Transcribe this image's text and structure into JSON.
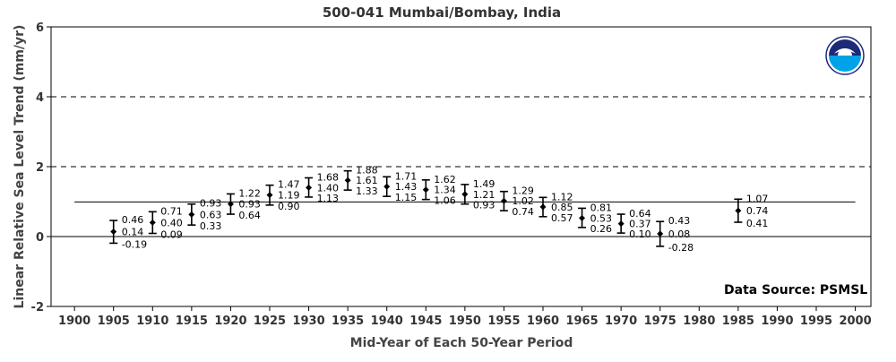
{
  "chart_data": {
    "type": "scatter",
    "title": "500-041 Mumbai/Bombay, India",
    "xlabel": "Mid-Year of Each 50-Year Period",
    "ylabel": "Linear Relative Sea Level Trend (mm/yr)",
    "xlim": [
      1897,
      2002
    ],
    "ylim": [
      -2,
      6
    ],
    "x_ticks": [
      1900,
      1905,
      1910,
      1915,
      1920,
      1925,
      1930,
      1935,
      1940,
      1945,
      1950,
      1955,
      1960,
      1965,
      1970,
      1975,
      1980,
      1985,
      1990,
      1995,
      2000
    ],
    "y_ticks": [
      -2,
      0,
      2,
      4,
      6
    ],
    "reference_lines": [
      {
        "y": 4,
        "style": "dashed"
      },
      {
        "y": 2,
        "style": "dashed"
      },
      {
        "y": 0,
        "style": "solid"
      }
    ],
    "trend_line": {
      "y": 0.99,
      "x_start": 1900,
      "x_end": 2000
    },
    "grid": false,
    "source": "Data Source: PSMSL",
    "logo": "noaa-logo",
    "points": [
      {
        "x": 1905,
        "upper": 0.46,
        "value": 0.14,
        "lower": -0.19,
        "labels": [
          "0.46",
          "0.14",
          "-0.19"
        ]
      },
      {
        "x": 1910,
        "upper": 0.71,
        "value": 0.4,
        "lower": 0.09,
        "labels": [
          "0.71",
          "0.40",
          "0.09"
        ]
      },
      {
        "x": 1915,
        "upper": 0.93,
        "value": 0.63,
        "lower": 0.33,
        "labels": [
          "0.93",
          "0.63",
          "0.33"
        ]
      },
      {
        "x": 1920,
        "upper": 1.22,
        "value": 0.93,
        "lower": 0.64,
        "labels": [
          "1.22",
          "0.93",
          "0.64"
        ]
      },
      {
        "x": 1925,
        "upper": 1.47,
        "value": 1.19,
        "lower": 0.9,
        "labels": [
          "1.47",
          "1.19",
          "0.90"
        ]
      },
      {
        "x": 1930,
        "upper": 1.68,
        "value": 1.4,
        "lower": 1.13,
        "labels": [
          "1.68",
          "1.40",
          "1.13"
        ]
      },
      {
        "x": 1935,
        "upper": 1.88,
        "value": 1.61,
        "lower": 1.33,
        "labels": [
          "1.88",
          "1.61",
          "1.33"
        ]
      },
      {
        "x": 1940,
        "upper": 1.71,
        "value": 1.43,
        "lower": 1.15,
        "labels": [
          "1.71",
          "1.43",
          "1.15"
        ]
      },
      {
        "x": 1945,
        "upper": 1.62,
        "value": 1.34,
        "lower": 1.06,
        "labels": [
          "1.62",
          "1.34",
          "1.06"
        ]
      },
      {
        "x": 1950,
        "upper": 1.49,
        "value": 1.21,
        "lower": 0.93,
        "labels": [
          "1.49",
          "1.21",
          "0.93"
        ]
      },
      {
        "x": 1955,
        "upper": 1.29,
        "value": 1.02,
        "lower": 0.74,
        "labels": [
          "1.29",
          "1.02",
          "0.74"
        ]
      },
      {
        "x": 1960,
        "upper": 1.12,
        "value": 0.85,
        "lower": 0.57,
        "labels": [
          "1.12",
          "0.85",
          "0.57"
        ]
      },
      {
        "x": 1965,
        "upper": 0.81,
        "value": 0.53,
        "lower": 0.26,
        "labels": [
          "0.81",
          "0.53",
          "0.26"
        ]
      },
      {
        "x": 1970,
        "upper": 0.64,
        "value": 0.37,
        "lower": 0.1,
        "labels": [
          "0.64",
          "0.37",
          "0.10"
        ]
      },
      {
        "x": 1975,
        "upper": 0.43,
        "value": 0.08,
        "lower": -0.28,
        "labels": [
          "0.43",
          "0.08",
          "-0.28"
        ]
      },
      {
        "x": 1985,
        "upper": 1.07,
        "value": 0.74,
        "lower": 0.41,
        "labels": [
          "1.07",
          "0.74",
          "0.41"
        ]
      }
    ],
    "colors": {
      "points": "#000000",
      "axes": "#000000",
      "text": "#333333",
      "logo_dark": "#1d2a78",
      "logo_light": "#00a2e8"
    }
  }
}
